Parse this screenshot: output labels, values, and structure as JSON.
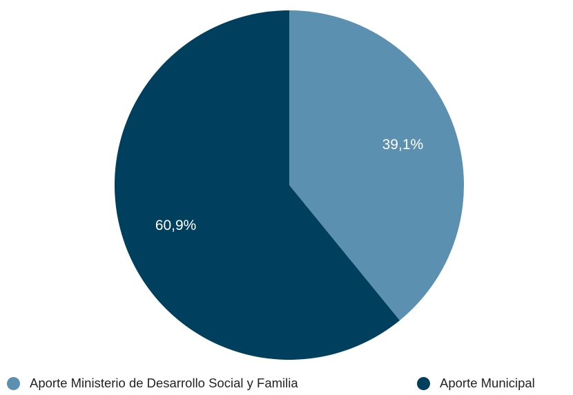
{
  "chart_data": {
    "type": "pie",
    "categories": [
      "Aporte Ministerio de Desarrollo Social y Familia",
      "Aporte Municipal"
    ],
    "values": [
      39.1,
      60.9
    ],
    "labels": [
      "39,1%",
      "60,9%"
    ],
    "colors": [
      "#5b90b0",
      "#003f5e"
    ],
    "start_angle": "12 o'clock",
    "direction": "clockwise",
    "legend": {
      "position": "bottom",
      "items": [
        {
          "label": "Aporte Ministerio de Desarrollo Social y Familia",
          "color": "#5b90b0"
        },
        {
          "label": "Aporte Municipal",
          "color": "#003f5e"
        }
      ]
    }
  }
}
